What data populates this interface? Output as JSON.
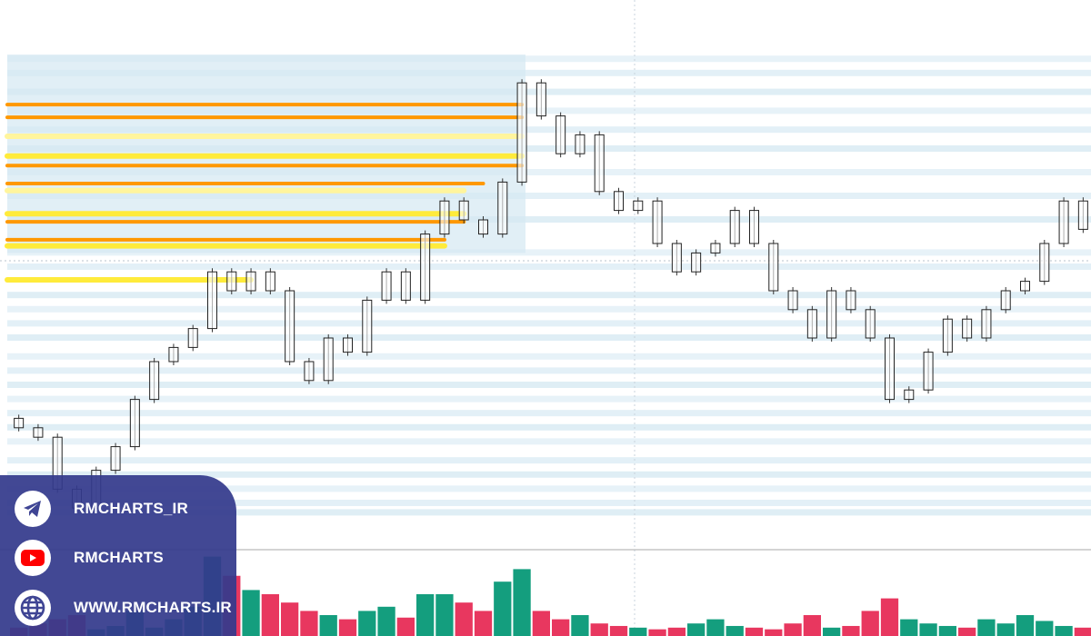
{
  "chart_data": {
    "type": "candlestick",
    "title": "",
    "xlabel": "",
    "ylabel": "",
    "price_scale": "normalized 0-100 (no axis labels shown)",
    "ylim": [
      0,
      100
    ],
    "open": [
      23,
      21,
      19,
      8,
      4,
      12,
      17,
      27,
      35,
      38,
      42,
      54,
      50,
      54,
      50,
      35,
      31,
      40,
      37,
      48,
      54,
      48,
      62,
      69,
      65,
      62,
      73,
      94,
      87,
      79,
      83,
      71,
      67,
      69,
      60,
      54,
      58,
      60,
      67,
      60,
      50,
      46,
      40,
      50,
      46,
      40,
      27,
      29,
      37,
      44,
      40,
      46,
      50,
      52,
      60,
      69
    ],
    "close": [
      21,
      19,
      8,
      4,
      12,
      17,
      27,
      35,
      38,
      42,
      54,
      50,
      54,
      50,
      35,
      31,
      40,
      37,
      48,
      54,
      48,
      62,
      69,
      65,
      62,
      73,
      94,
      87,
      79,
      83,
      71,
      67,
      69,
      60,
      54,
      58,
      60,
      67,
      60,
      50,
      46,
      40,
      50,
      46,
      40,
      27,
      29,
      37,
      44,
      40,
      46,
      50,
      52,
      60,
      69,
      63
    ],
    "volume": [
      10,
      15,
      20,
      25,
      8,
      12,
      30,
      10,
      20,
      35,
      95,
      72,
      55,
      50,
      40,
      30,
      25,
      20,
      30,
      35,
      22,
      50,
      50,
      40,
      30,
      65,
      80,
      30,
      20,
      25,
      15,
      12,
      10,
      8,
      10,
      15,
      20,
      12,
      10,
      8,
      15,
      25,
      10,
      12,
      30,
      45,
      20,
      15,
      12,
      10,
      20,
      15,
      25,
      18,
      12,
      10
    ],
    "heat_levels": [
      {
        "price": 89.4,
        "end_candle": 26,
        "color": "#ff9800"
      },
      {
        "price": 86.7,
        "end_candle": 26,
        "color": "#ff9800"
      },
      {
        "price": 82.7,
        "end_candle": 26,
        "color": "#fff59d"
      },
      {
        "price": 76.5,
        "end_candle": 26,
        "color": "#ff9800"
      },
      {
        "price": 78.5,
        "end_candle": 26,
        "color": "#ffeb3b"
      },
      {
        "price": 72.7,
        "end_candle": 24,
        "color": "#ff9800"
      },
      {
        "price": 71.2,
        "end_candle": 23,
        "color": "#fff59d"
      },
      {
        "price": 66.3,
        "end_candle": 23,
        "color": "#ffeb3b"
      },
      {
        "price": 64.6,
        "end_candle": 23,
        "color": "#ff9800"
      },
      {
        "price": 60.8,
        "end_candle": 22,
        "color": "#ff9800"
      },
      {
        "price": 59.5,
        "end_candle": 22,
        "color": "#ffeb3b"
      },
      {
        "price": 52.3,
        "end_candle": 12,
        "color": "#ffeb3b"
      }
    ],
    "liquidity_bands": [
      99,
      96,
      92,
      88,
      84,
      80,
      75,
      70,
      65,
      58,
      55,
      49,
      46,
      43,
      40,
      36,
      33,
      30,
      27,
      24,
      21,
      18,
      14,
      11,
      8,
      5,
      3
    ],
    "colors": {
      "up_volume": "#149e7e",
      "down_volume": "#e8375f",
      "candle_border": "#222222",
      "band": "#d4e8f2"
    }
  },
  "social": {
    "telegram": "RMCHARTS_IR",
    "youtube": "RMCHARTS",
    "website": "WWW.RMCHARTS.IR"
  }
}
